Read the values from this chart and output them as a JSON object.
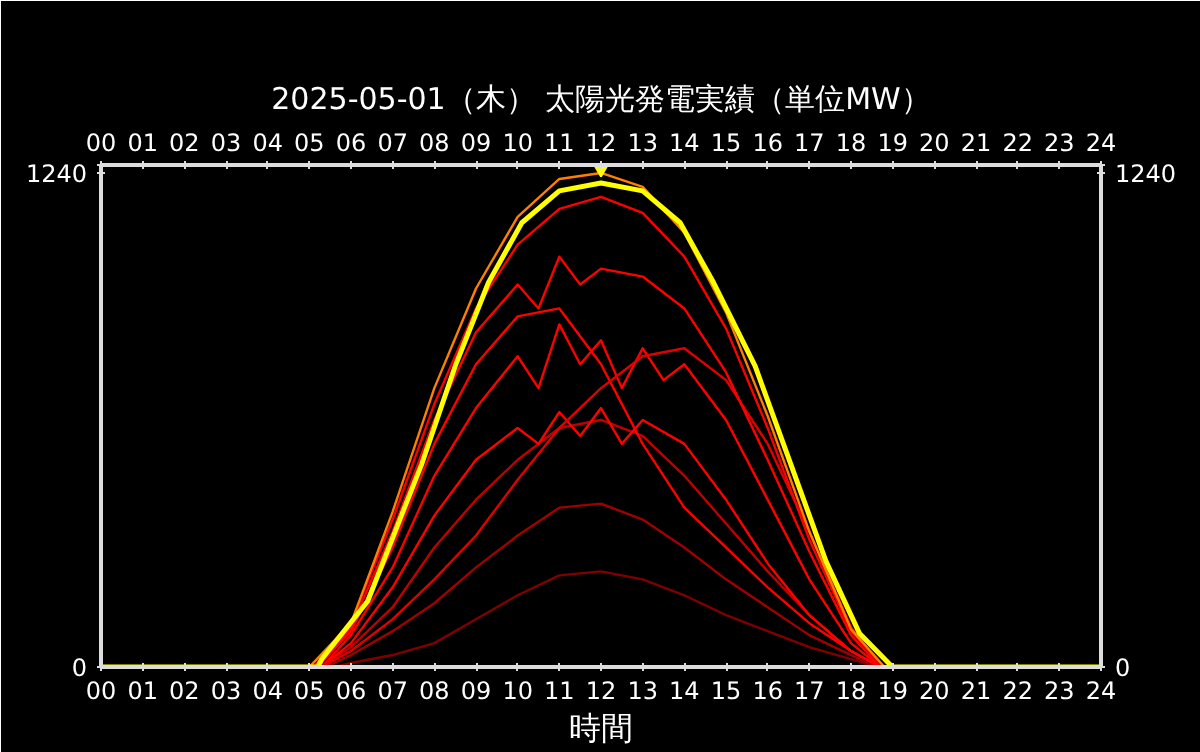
{
  "chart_data": {
    "type": "line",
    "title": "2025-05-01（木） 太陽光発電実績（単位MW）",
    "xlabel": "時間",
    "xlim": [
      0,
      24
    ],
    "xticks": [
      {
        "value": 0,
        "label": "00"
      },
      {
        "value": 1,
        "label": "01"
      },
      {
        "value": 2,
        "label": "02"
      },
      {
        "value": 3,
        "label": "03"
      },
      {
        "value": 4,
        "label": "04"
      },
      {
        "value": 5,
        "label": "05"
      },
      {
        "value": 6,
        "label": "06"
      },
      {
        "value": 7,
        "label": "07"
      },
      {
        "value": 8,
        "label": "08"
      },
      {
        "value": 9,
        "label": "09"
      },
      {
        "value": 10,
        "label": "10"
      },
      {
        "value": 11,
        "label": "11"
      },
      {
        "value": 12,
        "label": "12"
      },
      {
        "value": 13,
        "label": "13"
      },
      {
        "value": 14,
        "label": "14"
      },
      {
        "value": 15,
        "label": "15"
      },
      {
        "value": 16,
        "label": "16"
      },
      {
        "value": 17,
        "label": "17"
      },
      {
        "value": 18,
        "label": "18"
      },
      {
        "value": 19,
        "label": "19"
      },
      {
        "value": 20,
        "label": "20"
      },
      {
        "value": 21,
        "label": "21"
      },
      {
        "value": 22,
        "label": "22"
      },
      {
        "value": 23,
        "label": "23"
      },
      {
        "value": 24,
        "label": "24"
      }
    ],
    "x2lim": [
      0,
      24
    ],
    "x2ticks": [
      {
        "value": 0,
        "label": "00"
      },
      {
        "value": 1,
        "label": "01"
      },
      {
        "value": 2,
        "label": "02"
      },
      {
        "value": 3,
        "label": "03"
      },
      {
        "value": 4,
        "label": "04"
      },
      {
        "value": 5,
        "label": "05"
      },
      {
        "value": 6,
        "label": "06"
      },
      {
        "value": 7,
        "label": "07"
      },
      {
        "value": 8,
        "label": "08"
      },
      {
        "value": 9,
        "label": "09"
      },
      {
        "value": 10,
        "label": "10"
      },
      {
        "value": 11,
        "label": "11"
      },
      {
        "value": 12,
        "label": "12"
      },
      {
        "value": 13,
        "label": "13"
      },
      {
        "value": 14,
        "label": "14"
      },
      {
        "value": 15,
        "label": "15"
      },
      {
        "value": 16,
        "label": "16"
      },
      {
        "value": 17,
        "label": "17"
      },
      {
        "value": 18,
        "label": "18"
      },
      {
        "value": 19,
        "label": "19"
      },
      {
        "value": 20,
        "label": "20"
      },
      {
        "value": 21,
        "label": "21"
      },
      {
        "value": 22,
        "label": "22"
      },
      {
        "value": 23,
        "label": "23"
      },
      {
        "value": 24,
        "label": "24"
      }
    ],
    "ylim": [
      0,
      1260
    ],
    "yticks": [
      0,
      1240,
      {
        "value": 1260,
        "label": null
      }
    ],
    "y2lim": [
      0,
      1260
    ],
    "y2ticks": [
      0,
      1240,
      {
        "value": 1260,
        "label": null
      }
    ],
    "grid": false,
    "line_style": "solid",
    "marker": "none",
    "series": [
      {
        "color": "#800000",
        "x": [
          0,
          5.6,
          6,
          7,
          8,
          9,
          10,
          11,
          12,
          13,
          14,
          15,
          16,
          17,
          18,
          18.6,
          24
        ],
        "values": [
          0,
          0,
          10,
          30,
          60,
          120,
          180,
          230,
          240,
          220,
          180,
          130,
          90,
          50,
          20,
          0,
          0
        ]
      },
      {
        "color": "#a00000",
        "x": [
          0,
          5.4,
          6,
          7,
          8,
          9,
          10,
          11,
          12,
          13,
          14,
          15,
          16,
          17,
          18,
          18.6,
          24
        ],
        "values": [
          0,
          0,
          30,
          90,
          160,
          250,
          330,
          400,
          410,
          370,
          300,
          220,
          150,
          80,
          30,
          0,
          0
        ]
      },
      {
        "color": "#c00000",
        "x": [
          0,
          5.3,
          6,
          7,
          8,
          9,
          10,
          11,
          12,
          13,
          14,
          15,
          16,
          17,
          18,
          18.7,
          24
        ],
        "values": [
          0,
          0,
          50,
          150,
          300,
          420,
          520,
          600,
          620,
          580,
          480,
          360,
          240,
          130,
          40,
          0,
          0
        ]
      },
      {
        "color": "#ff0000",
        "x": [
          0,
          5.3,
          6,
          7,
          8,
          9,
          10,
          10.5,
          11,
          11.5,
          12,
          12.5,
          13,
          14,
          15,
          16,
          17,
          18,
          18.7,
          24
        ],
        "values": [
          0,
          0,
          60,
          200,
          380,
          520,
          600,
          560,
          640,
          580,
          650,
          560,
          620,
          560,
          420,
          260,
          130,
          40,
          0,
          0
        ]
      },
      {
        "color": "#ff0000",
        "x": [
          0,
          5.3,
          6,
          7,
          8,
          9,
          10,
          10.5,
          11,
          11.5,
          12,
          12.5,
          13,
          13.5,
          14,
          15,
          16,
          17,
          18,
          18.7,
          24
        ],
        "values": [
          0,
          0,
          80,
          250,
          480,
          650,
          780,
          700,
          860,
          760,
          820,
          700,
          800,
          720,
          760,
          620,
          420,
          220,
          60,
          0,
          0
        ]
      },
      {
        "color": "#ff0000",
        "x": [
          0,
          5.2,
          6,
          7,
          8,
          9,
          10,
          11,
          12,
          13,
          14,
          15,
          16,
          17,
          18,
          18.7,
          24
        ],
        "values": [
          0,
          0,
          90,
          300,
          560,
          760,
          880,
          900,
          760,
          560,
          400,
          300,
          200,
          110,
          40,
          0,
          0
        ]
      },
      {
        "color": "#e00000",
        "x": [
          0,
          5.3,
          6,
          7,
          8,
          9,
          10,
          11,
          12,
          13,
          14,
          15,
          16,
          17,
          18,
          18.7,
          24
        ],
        "values": [
          0,
          0,
          40,
          120,
          220,
          330,
          470,
          600,
          700,
          780,
          800,
          720,
          560,
          340,
          100,
          0,
          0
        ]
      },
      {
        "color": "#ff0000",
        "x": [
          0,
          5.2,
          6,
          7,
          8,
          9,
          10,
          10.5,
          11,
          11.5,
          12,
          13,
          14,
          15,
          16,
          17,
          18,
          18.7,
          24
        ],
        "values": [
          0,
          0,
          100,
          340,
          620,
          840,
          960,
          900,
          1030,
          960,
          1000,
          980,
          900,
          740,
          520,
          290,
          80,
          0,
          0
        ]
      },
      {
        "color": "#ff0000",
        "x": [
          0,
          5.1,
          6,
          7,
          8,
          9,
          10,
          11,
          12,
          13,
          14,
          15,
          16,
          17,
          18,
          18.8,
          24
        ],
        "values": [
          0,
          0,
          110,
          370,
          660,
          900,
          1060,
          1150,
          1180,
          1140,
          1030,
          850,
          600,
          320,
          90,
          0,
          0
        ]
      },
      {
        "color": "#ff8000",
        "x": [
          0,
          5.0,
          6,
          7,
          8,
          9,
          10,
          11,
          12,
          13,
          14,
          15,
          16,
          17,
          18,
          18.8,
          24
        ],
        "values": [
          0,
          0,
          110,
          390,
          700,
          950,
          1130,
          1225,
          1240,
          1205,
          1090,
          890,
          630,
          340,
          95,
          0,
          0
        ]
      },
      {
        "color": "#ffff00",
        "x": [
          0,
          5.2,
          5.3,
          6.4,
          7.7,
          8.5,
          9.3,
          10.1,
          11.0,
          12.0,
          13.0,
          13.9,
          14.7,
          15.7,
          16.5,
          17.4,
          18.2,
          18.9,
          19.0,
          24
        ],
        "values": [
          0,
          0,
          20,
          165,
          510,
          755,
          965,
          1115,
          1195,
          1215,
          1195,
          1115,
          965,
          755,
          525,
          265,
          85,
          10,
          0,
          0
        ]
      },
      {
        "type": "scatter",
        "marker": "triangle",
        "color": "#ffff00",
        "x": [
          12
        ],
        "values": [
          1260
        ]
      }
    ]
  }
}
